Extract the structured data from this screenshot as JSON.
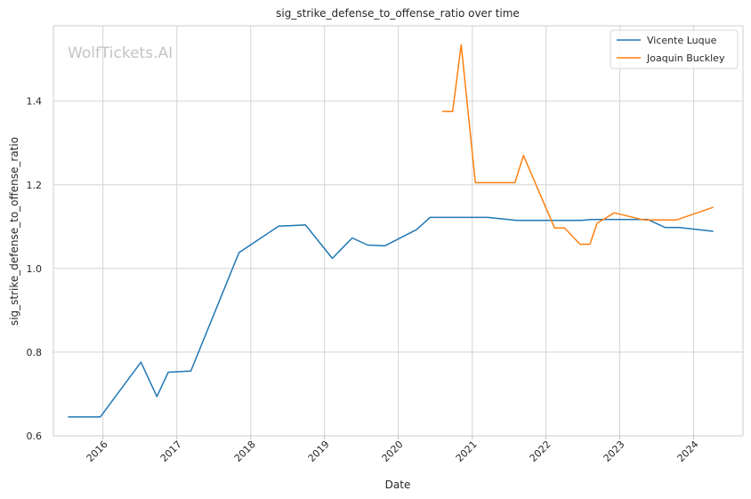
{
  "chart_data": {
    "type": "line",
    "title": "sig_strike_defense_to_offense_ratio over time",
    "xlabel": "Date",
    "ylabel": "sig_strike_defense_to_offense_ratio",
    "watermark": "WolfTickets.AI",
    "xlim": [
      "2015-05-01",
      "2024-09-01"
    ],
    "ylim": [
      0.6,
      1.58
    ],
    "x_ticks": [
      "2016-01-01",
      "2017-01-01",
      "2018-01-01",
      "2019-01-01",
      "2020-01-01",
      "2021-01-01",
      "2022-01-01",
      "2023-01-01",
      "2024-01-01"
    ],
    "x_tick_labels": [
      "2016",
      "2017",
      "2018",
      "2019",
      "2020",
      "2021",
      "2022",
      "2023",
      "2024"
    ],
    "y_ticks": [
      0.6,
      0.8,
      1.0,
      1.2,
      1.4
    ],
    "y_tick_labels": [
      "0.6",
      "0.8",
      "1.0",
      "1.2",
      "1.4"
    ],
    "grid": true,
    "legend_position": "top-right",
    "series": [
      {
        "name": "Vicente Luque",
        "color": "#1f77b4",
        "points": [
          {
            "x": "2015-07-15",
            "y": 0.645
          },
          {
            "x": "2015-12-19",
            "y": 0.645
          },
          {
            "x": "2016-07-07",
            "y": 0.776
          },
          {
            "x": "2016-09-24",
            "y": 0.694
          },
          {
            "x": "2016-11-19",
            "y": 0.752
          },
          {
            "x": "2017-03-11",
            "y": 0.755
          },
          {
            "x": "2017-11-04",
            "y": 1.038
          },
          {
            "x": "2018-05-19",
            "y": 1.101
          },
          {
            "x": "2018-09-29",
            "y": 1.104
          },
          {
            "x": "2019-02-09",
            "y": 1.024
          },
          {
            "x": "2019-05-18",
            "y": 1.073
          },
          {
            "x": "2019-08-03",
            "y": 1.056
          },
          {
            "x": "2019-10-26",
            "y": 1.054
          },
          {
            "x": "2020-04-01",
            "y": 1.093
          },
          {
            "x": "2020-06-06",
            "y": 1.122
          },
          {
            "x": "2021-03-20",
            "y": 1.122
          },
          {
            "x": "2021-08-07",
            "y": 1.115
          },
          {
            "x": "2022-06-25",
            "y": 1.115
          },
          {
            "x": "2022-08-13",
            "y": 1.117
          },
          {
            "x": "2023-05-20",
            "y": 1.117
          },
          {
            "x": "2023-08-12",
            "y": 1.098
          },
          {
            "x": "2023-10-21",
            "y": 1.098
          },
          {
            "x": "2024-04-05",
            "y": 1.089
          }
        ]
      },
      {
        "name": "Joaquin Buckley",
        "color": "#ff7f0e",
        "points": [
          {
            "x": "2020-08-08",
            "y": 1.375
          },
          {
            "x": "2020-09-26",
            "y": 1.375
          },
          {
            "x": "2020-11-07",
            "y": 1.535
          },
          {
            "x": "2021-01-16",
            "y": 1.205
          },
          {
            "x": "2021-07-31",
            "y": 1.205
          },
          {
            "x": "2021-09-11",
            "y": 1.27
          },
          {
            "x": "2022-02-12",
            "y": 1.097
          },
          {
            "x": "2022-04-02",
            "y": 1.097
          },
          {
            "x": "2022-06-18",
            "y": 1.058
          },
          {
            "x": "2022-08-06",
            "y": 1.058
          },
          {
            "x": "2022-09-10",
            "y": 1.108
          },
          {
            "x": "2022-12-04",
            "y": 1.133
          },
          {
            "x": "2023-05-01",
            "y": 1.116
          },
          {
            "x": "2023-10-07",
            "y": 1.116
          },
          {
            "x": "2024-04-05",
            "y": 1.146
          }
        ]
      }
    ]
  }
}
